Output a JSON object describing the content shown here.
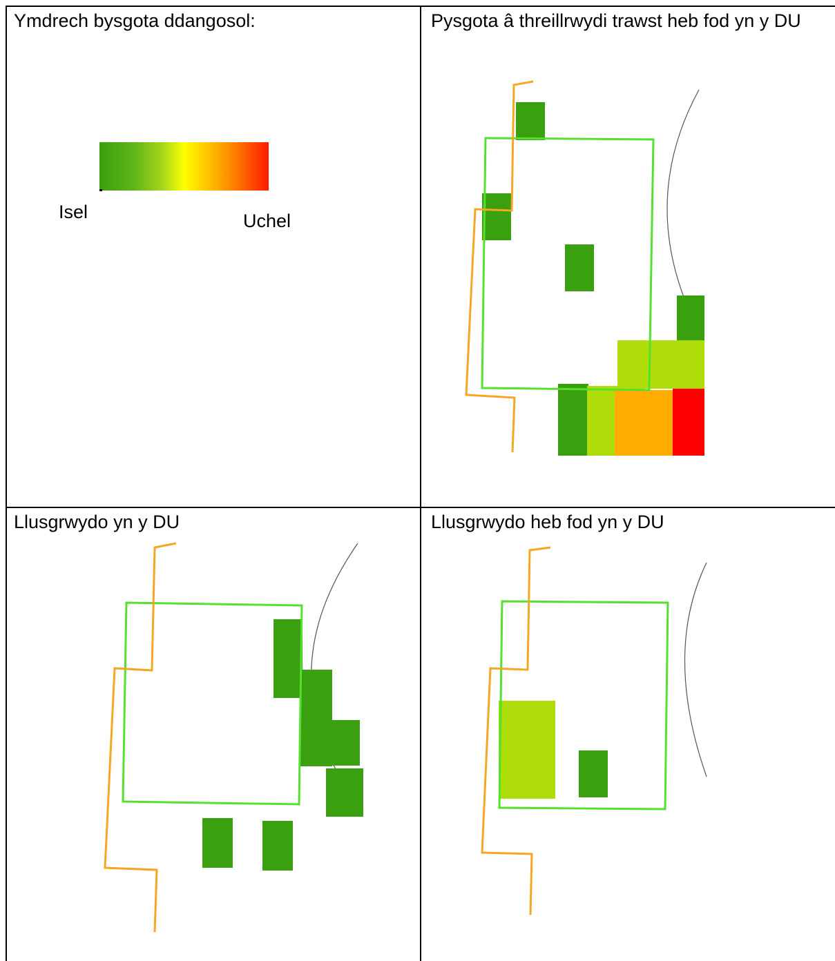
{
  "panels": {
    "legend": {
      "title": "Ymdrech bysgota ddangosol:",
      "low_label": "Isel",
      "high_label": "Uchel",
      "gradient_colors": [
        "#3aa010",
        "#a8d81c",
        "#ffff00",
        "#ffb300",
        "#ff1a00"
      ]
    },
    "top_right": {
      "title": "Pysgota â threillrwydi trawst heb fod yn y DU"
    },
    "bottom_left": {
      "title": "Llusgrwydo yn y DU"
    },
    "bottom_right": {
      "title": "Llusgrwydo heb fod yn y DU"
    }
  },
  "colors": {
    "boundary_green": "#55e030",
    "track_orange": "#f5a623",
    "low_green": "#3aa010",
    "yellow_green": "#aedd0a",
    "orange": "#ffad00",
    "red": "#ff0000"
  }
}
